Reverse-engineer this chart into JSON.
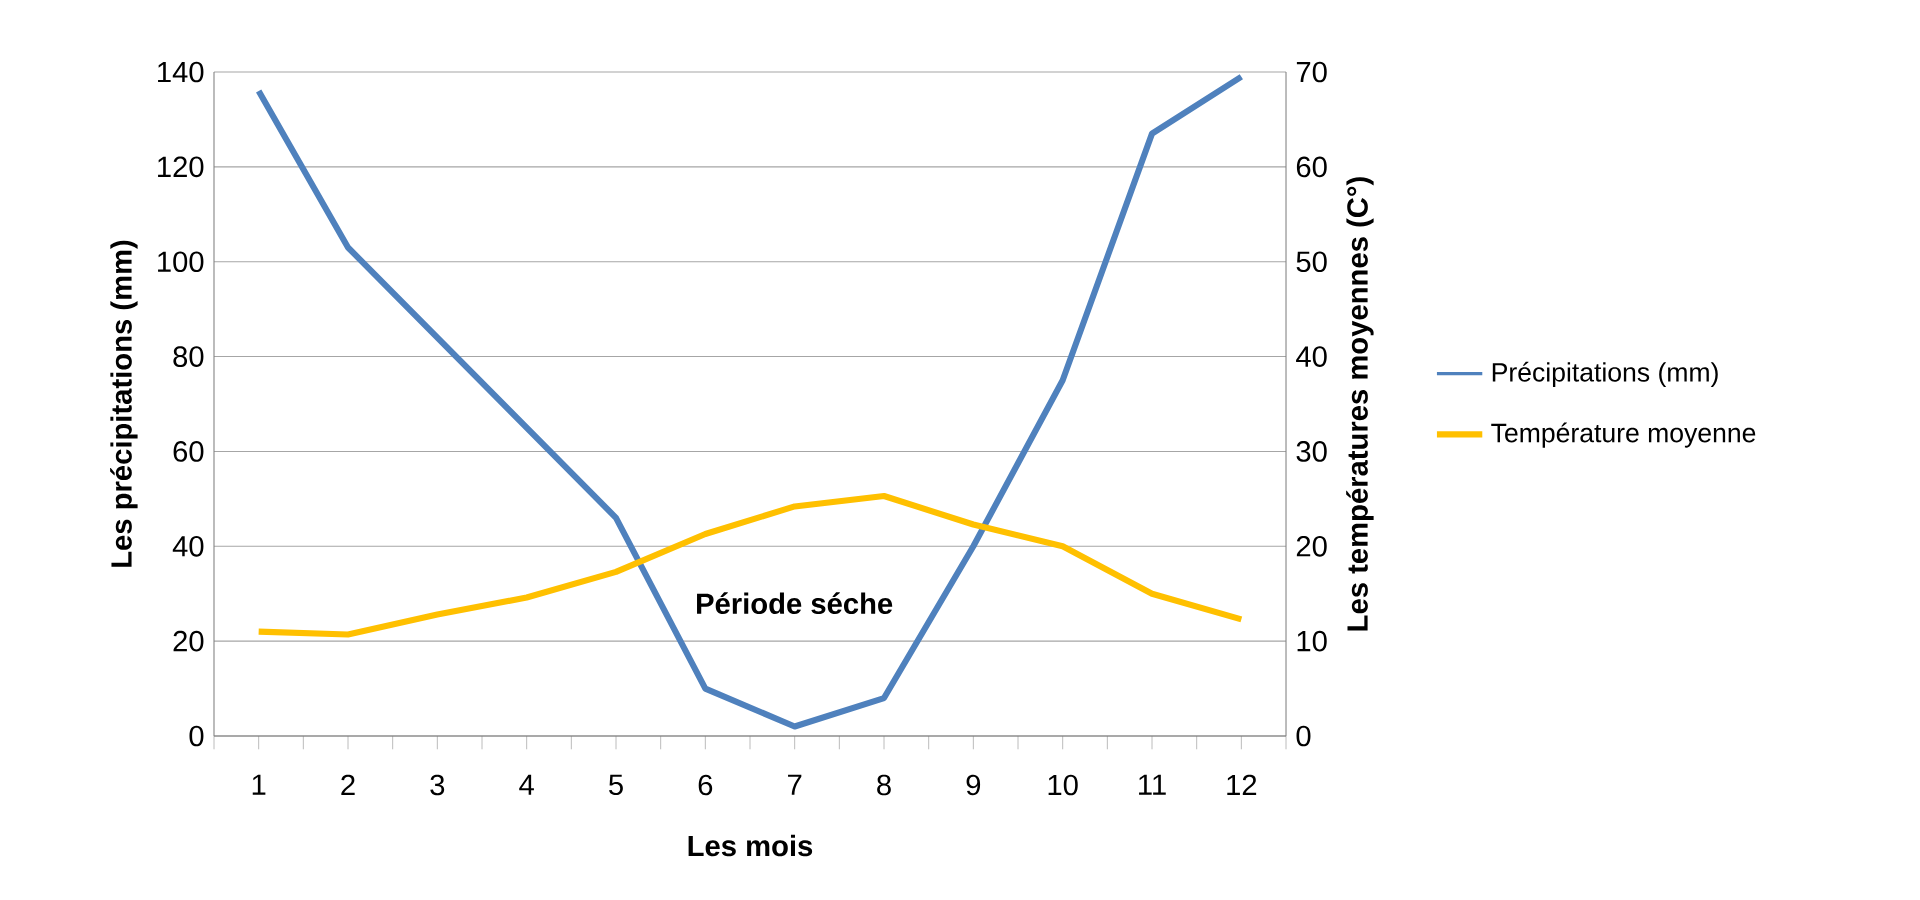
{
  "chart_data": {
    "type": "line",
    "xlabel": "Les mois",
    "ylabel": "Les précipitations (mm)",
    "y2label": "Les températures moyennes (C°)",
    "categories": [
      "1",
      "2",
      "3",
      "4",
      "5",
      "6",
      "7",
      "8",
      "9",
      "10",
      "11",
      "12"
    ],
    "series": [
      {
        "name": "Précipitations (mm)",
        "color": "#4f81bd",
        "values": [
          136,
          103,
          84,
          65,
          46,
          10,
          2,
          8,
          40,
          75,
          127,
          139
        ]
      },
      {
        "name": "Température moyenne",
        "color": "#ffc000",
        "axis": "y2",
        "values": [
          11,
          10.7,
          12.8,
          14.6,
          17.3,
          21.3,
          24.2,
          25.3,
          22.3,
          20,
          15,
          12.3
        ]
      }
    ],
    "ylim": [
      0,
      140
    ],
    "yticks": [
      0,
      20,
      40,
      60,
      80,
      100,
      120,
      140
    ],
    "y2lim": [
      0,
      70
    ],
    "y2ticks": [
      0,
      10,
      20,
      30,
      40,
      50,
      60,
      70
    ],
    "grid": "y",
    "legend": "right",
    "annotations": [
      "Période séche"
    ]
  }
}
